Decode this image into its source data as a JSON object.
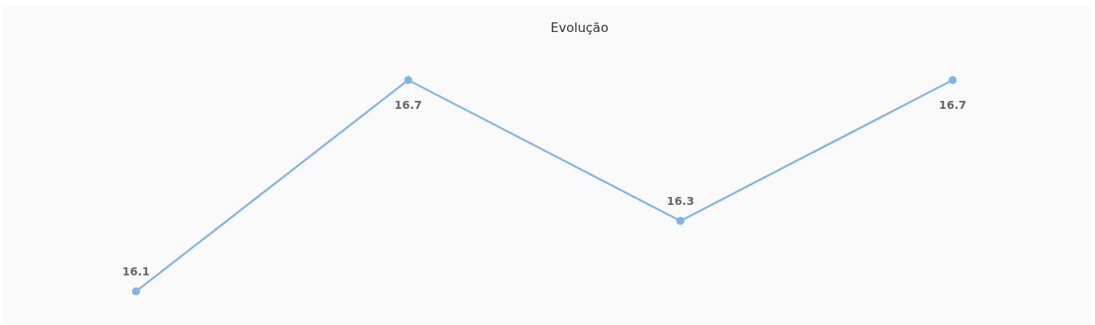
{
  "chart_data": {
    "type": "line",
    "title": "Evolução",
    "categories": [
      null,
      null,
      null,
      null
    ],
    "series": [
      {
        "color": "#7cb5ec",
        "values": [
          16.1,
          16.7,
          16.3,
          16.7
        ]
      }
    ],
    "data_labels": true,
    "marker": "circle"
  }
}
